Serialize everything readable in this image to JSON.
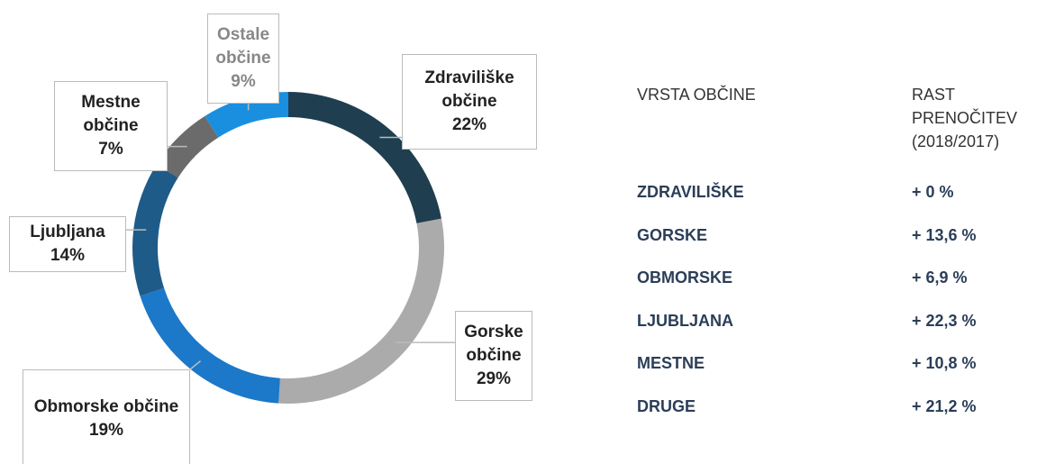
{
  "chart_data": {
    "type": "donut",
    "categories": [
      "Zdraviliške občine",
      "Gorske občine",
      "Obmorske občine",
      "Ljubljana",
      "Mestne občine",
      "Ostale občine"
    ],
    "values": [
      22,
      29,
      19,
      14,
      7,
      9
    ],
    "value_labels": [
      "22%",
      "29%",
      "19%",
      "14%",
      "7%",
      "9%"
    ],
    "colors": [
      "#1f3e50",
      "#ababab",
      "#1c78c9",
      "#1e5b88",
      "#6b6b6b",
      "#1a8fdf"
    ]
  },
  "table": {
    "header": [
      "VRSTA OBČINE",
      "RAST PRENOČITEV (2018/2017)"
    ],
    "rows": [
      [
        "ZDRAVILIŠKE",
        "+ 0 %"
      ],
      [
        "GORSKE",
        "+ 13,6 %"
      ],
      [
        "OBMORSKE",
        "+ 6,9 %"
      ],
      [
        "LJUBLJANA",
        "+ 22,3 %"
      ],
      [
        "MESTNE",
        "+ 10,8 %"
      ],
      [
        "DRUGE",
        "+ 21,2 %"
      ]
    ]
  }
}
